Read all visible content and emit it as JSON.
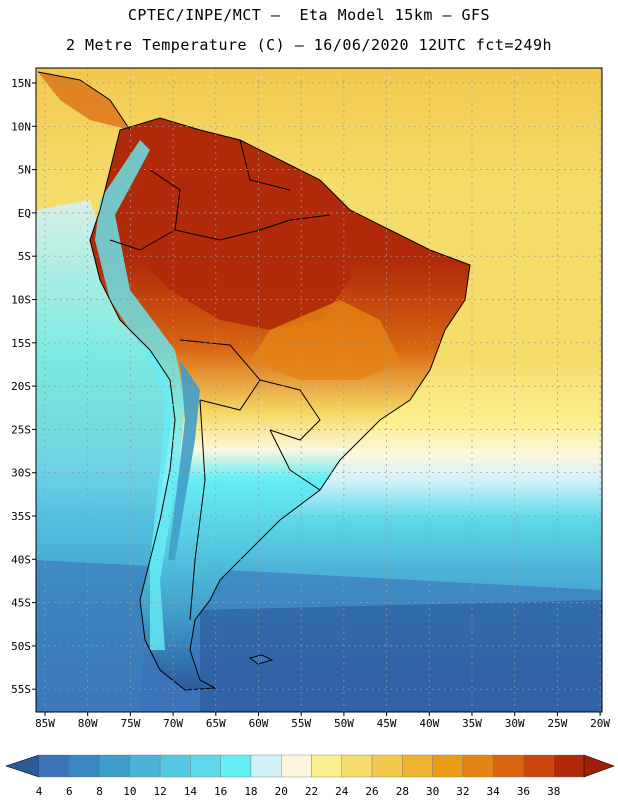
{
  "title_line1": "CPTEC/INPE/MCT –  Eta Model 15km – GFS",
  "title_line2": "2 Metre Temperature (C) – 16/06/2020 12UTC fct=249h",
  "lat_labels": [
    "15N",
    "10N",
    "5N",
    "EQ",
    "5S",
    "10S",
    "15S",
    "20S",
    "25S",
    "30S",
    "35S",
    "40S",
    "45S",
    "50S",
    "55S"
  ],
  "lon_labels": [
    "85W",
    "80W",
    "75W",
    "70W",
    "65W",
    "60W",
    "55W",
    "50W",
    "45W",
    "40W",
    "35W",
    "30W",
    "25W",
    "20W"
  ],
  "colorbar": {
    "ticks": [
      "4",
      "6",
      "8",
      "10",
      "12",
      "14",
      "16",
      "18",
      "20",
      "22",
      "24",
      "26",
      "28",
      "30",
      "32",
      "34",
      "36",
      "38"
    ],
    "colors": [
      "#3a73b8",
      "#3a86c0",
      "#3f9dca",
      "#4cb3d6",
      "#55c8e1",
      "#5ed9ea",
      "#66eef6",
      "#d2f2fb",
      "#fdf6de",
      "#fbf08d",
      "#f6dc6a",
      "#f2c84d",
      "#eeb431",
      "#e99d16",
      "#e38414",
      "#d86410",
      "#c9470c",
      "#b02a0a"
    ],
    "low_color": "#2c5a9b",
    "high_color": "#a01f0a"
  }
}
